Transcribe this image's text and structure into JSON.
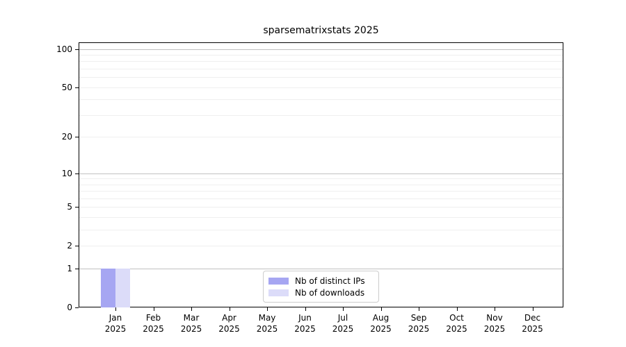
{
  "figure": {
    "title": "sparsematrixstats 2025"
  },
  "chart_data": {
    "type": "bar",
    "title": "sparsematrixstats 2025",
    "x_month_labels": [
      "Jan",
      "Feb",
      "Mar",
      "Apr",
      "May",
      "Jun",
      "Jul",
      "Aug",
      "Sep",
      "Oct",
      "Nov",
      "Dec"
    ],
    "x_year_label": "2025",
    "series": [
      {
        "name": "Nb of distinct IPs",
        "color": "#a6a6f2",
        "values": [
          1,
          0,
          0,
          0,
          0,
          0,
          0,
          0,
          0,
          0,
          0,
          0
        ]
      },
      {
        "name": "Nb of downloads",
        "color": "#dcdcf9",
        "values": [
          1,
          0,
          0,
          0,
          0,
          0,
          0,
          0,
          0,
          0,
          0,
          0
        ]
      }
    ],
    "yscale": "log1p",
    "ylim": [
      0,
      113
    ],
    "ytick_values": [
      0,
      1,
      2,
      5,
      10,
      20,
      50,
      100
    ],
    "major_gridline_values": [
      1,
      10,
      100
    ],
    "minor_gridline_values": [
      2,
      3,
      4,
      5,
      6,
      7,
      8,
      9,
      20,
      30,
      40,
      50,
      60,
      70,
      80,
      90
    ],
    "grid": true,
    "legend_position": "bottom-center",
    "legend_entries": [
      "Nb of distinct IPs",
      "Nb of downloads"
    ]
  },
  "colors": {
    "background": "#ffffff",
    "spine": "#000000",
    "major_gridline": "#c0c0c0",
    "minor_gridline": "#efefef",
    "text": "#000000",
    "legend_border": "#cccccc",
    "bar_distinct_ips": "#a6a6f2",
    "bar_downloads": "#dcdcf9"
  }
}
